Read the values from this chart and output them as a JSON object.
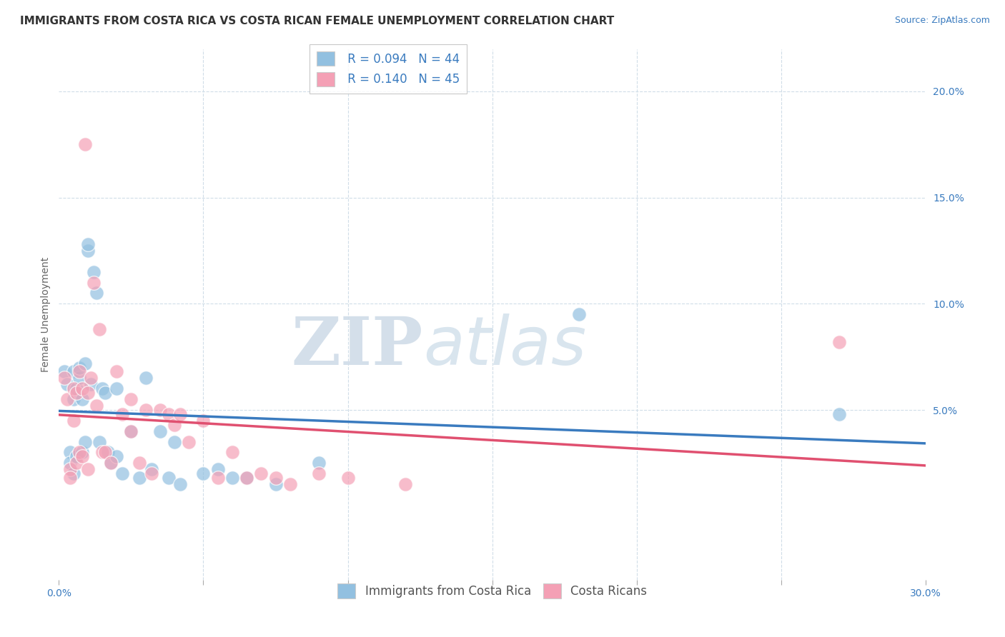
{
  "title": "IMMIGRANTS FROM COSTA RICA VS COSTA RICAN FEMALE UNEMPLOYMENT CORRELATION CHART",
  "source": "Source: ZipAtlas.com",
  "ylabel": "Female Unemployment",
  "x_min": 0.0,
  "x_max": 0.3,
  "y_min": -0.03,
  "y_max": 0.22,
  "legend_r1": "R = 0.094",
  "legend_n1": "N = 44",
  "legend_r2": "R = 0.140",
  "legend_n2": "N = 45",
  "color_blue": "#92c0e0",
  "color_pink": "#f4a0b5",
  "line_color_blue": "#3a7bbf",
  "line_color_pink": "#e05070",
  "background_color": "#ffffff",
  "grid_color": "#d0dde8",
  "watermark_zip": "ZIP",
  "watermark_atlas": "atlas",
  "blue_scatter_x": [
    0.002,
    0.003,
    0.004,
    0.004,
    0.005,
    0.005,
    0.005,
    0.006,
    0.006,
    0.007,
    0.007,
    0.008,
    0.008,
    0.009,
    0.009,
    0.01,
    0.01,
    0.011,
    0.012,
    0.013,
    0.014,
    0.015,
    0.016,
    0.017,
    0.018,
    0.02,
    0.02,
    0.022,
    0.025,
    0.028,
    0.03,
    0.032,
    0.035,
    0.038,
    0.04,
    0.042,
    0.05,
    0.055,
    0.06,
    0.065,
    0.075,
    0.09,
    0.18,
    0.27
  ],
  "blue_scatter_y": [
    0.068,
    0.062,
    0.03,
    0.025,
    0.068,
    0.055,
    0.02,
    0.06,
    0.028,
    0.065,
    0.07,
    0.055,
    0.03,
    0.072,
    0.035,
    0.125,
    0.128,
    0.062,
    0.115,
    0.105,
    0.035,
    0.06,
    0.058,
    0.03,
    0.025,
    0.06,
    0.028,
    0.02,
    0.04,
    0.018,
    0.065,
    0.022,
    0.04,
    0.018,
    0.035,
    0.015,
    0.02,
    0.022,
    0.018,
    0.018,
    0.015,
    0.025,
    0.095,
    0.048
  ],
  "pink_scatter_x": [
    0.002,
    0.003,
    0.004,
    0.004,
    0.005,
    0.005,
    0.006,
    0.006,
    0.007,
    0.007,
    0.008,
    0.008,
    0.009,
    0.01,
    0.01,
    0.011,
    0.012,
    0.013,
    0.014,
    0.015,
    0.016,
    0.018,
    0.02,
    0.022,
    0.025,
    0.025,
    0.028,
    0.03,
    0.032,
    0.035,
    0.038,
    0.04,
    0.042,
    0.045,
    0.05,
    0.055,
    0.06,
    0.065,
    0.07,
    0.075,
    0.08,
    0.09,
    0.1,
    0.12,
    0.27
  ],
  "pink_scatter_y": [
    0.065,
    0.055,
    0.022,
    0.018,
    0.06,
    0.045,
    0.058,
    0.025,
    0.068,
    0.03,
    0.06,
    0.028,
    0.175,
    0.058,
    0.022,
    0.065,
    0.11,
    0.052,
    0.088,
    0.03,
    0.03,
    0.025,
    0.068,
    0.048,
    0.055,
    0.04,
    0.025,
    0.05,
    0.02,
    0.05,
    0.048,
    0.043,
    0.048,
    0.035,
    0.045,
    0.018,
    0.03,
    0.018,
    0.02,
    0.018,
    0.015,
    0.02,
    0.018,
    0.015,
    0.082
  ],
  "title_fontsize": 11,
  "label_fontsize": 10,
  "tick_fontsize": 10,
  "legend_fontsize": 12
}
